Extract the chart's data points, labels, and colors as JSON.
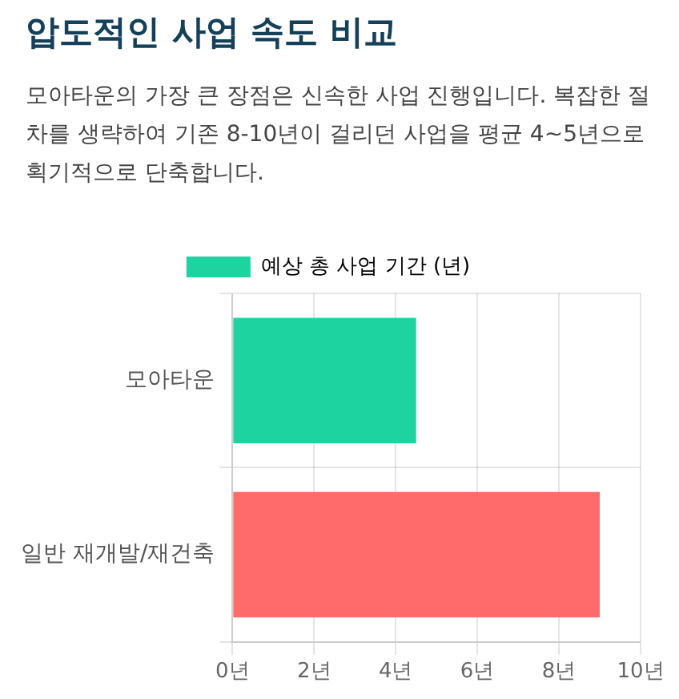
{
  "chart_data": {
    "type": "bar",
    "title": "압도적인 사업 속도 비교",
    "subtitle": "모아타운의 가장 큰 장점은 신속한 사업 진행입니다. 복잡한 절차를 생략하여 기존 8-10년이 걸리던 사업을 평균 4~5년으로 획기적으로 단축합니다.",
    "orientation": "horizontal",
    "categories": [
      "모아타운",
      "일반 재개발/재건축"
    ],
    "series": [
      {
        "name": "예상 총 사업 기간 (년)",
        "color": "#1dd3a0",
        "colors": [
          "#1dd3a0",
          "#ff6b6b"
        ],
        "values": [
          4.5,
          9
        ]
      }
    ],
    "xlim": [
      0,
      10
    ],
    "xticks": [
      {
        "value": 0,
        "label": "0년"
      },
      {
        "value": 2,
        "label": "2년"
      },
      {
        "value": 4,
        "label": "4년"
      },
      {
        "value": 6,
        "label": "6년"
      },
      {
        "value": 8,
        "label": "8년"
      },
      {
        "value": 10,
        "label": "10년"
      }
    ],
    "grid": true,
    "legend": "top"
  }
}
